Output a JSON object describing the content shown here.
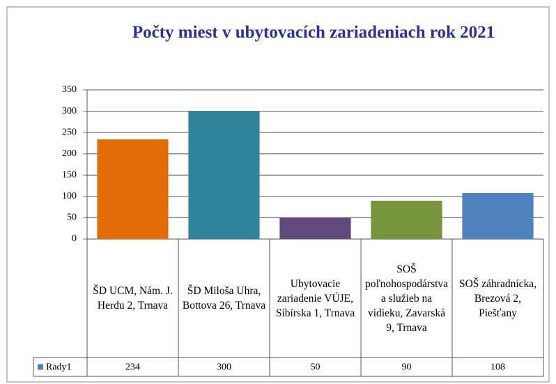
{
  "chart_data": {
    "type": "bar",
    "title": "Počty miest v ubytovacích zariadeniach rok 2021",
    "categories": [
      "ŠD UCM, Nám. J. Herdu 2, Trnava",
      "ŠD Miloša Uhra, Bottova 26,  Trnava",
      "Ubytovacie zariadenie VÚJE, Sibírska 1, Trnava",
      "SOŠ poľnohospodárstva a služieb na vidieku, Zavarská 9, Trnava",
      "SOŠ záhradnícka, Brezová 2, Piešťany"
    ],
    "series": [
      {
        "name": "Rady1",
        "color": "#4f81bd",
        "values": [
          234,
          300,
          50,
          90,
          108
        ]
      }
    ],
    "colors": [
      "#e36c0a",
      "#31849b",
      "#604a7b",
      "#77933c",
      "#4f81bd"
    ],
    "ylim": [
      0,
      350
    ],
    "yticks": [
      0,
      50,
      100,
      150,
      200,
      250,
      300,
      350
    ],
    "grid": true,
    "data_table": true
  }
}
